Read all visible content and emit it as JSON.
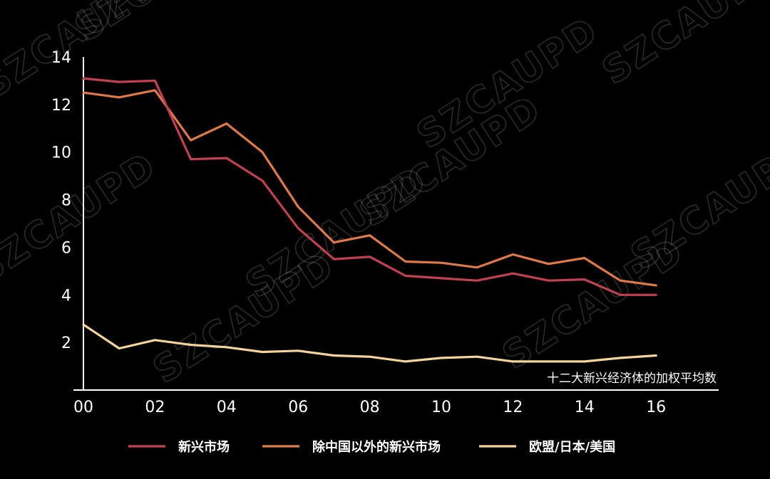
{
  "watermark": "SZCAUPD",
  "chart_data": {
    "type": "line",
    "annotation": "十二大新兴经济体的加权平均数",
    "x": [
      "00",
      "01",
      "02",
      "03",
      "04",
      "05",
      "06",
      "07",
      "08",
      "09",
      "10",
      "11",
      "12",
      "13",
      "14",
      "15",
      "16"
    ],
    "x_tick_labels": [
      "00",
      "02",
      "04",
      "06",
      "08",
      "10",
      "12",
      "14",
      "16"
    ],
    "y_ticks": [
      2,
      4,
      6,
      8,
      10,
      12,
      14
    ],
    "ylim": [
      0,
      14
    ],
    "grid": false,
    "legend_position": "bottom",
    "series": [
      {
        "name": "新兴市场",
        "color": "#c2404f",
        "values": [
          13.1,
          12.95,
          13.0,
          9.7,
          9.75,
          8.8,
          6.8,
          5.5,
          5.6,
          4.8,
          4.7,
          4.6,
          4.9,
          4.6,
          4.65,
          4.0,
          4.0
        ]
      },
      {
        "name": "除中国以外的新兴市场",
        "color": "#e07848",
        "values": [
          12.5,
          12.3,
          12.6,
          10.5,
          11.2,
          10.0,
          7.7,
          6.2,
          6.5,
          5.4,
          5.35,
          5.15,
          5.7,
          5.3,
          5.55,
          4.6,
          4.4
        ]
      },
      {
        "name": "欧盟/日本/美国",
        "color": "#f5d49a",
        "values": [
          2.75,
          1.75,
          2.1,
          1.9,
          1.8,
          1.6,
          1.65,
          1.45,
          1.4,
          1.2,
          1.35,
          1.4,
          1.2,
          1.2,
          1.2,
          1.35,
          1.45
        ]
      }
    ]
  }
}
